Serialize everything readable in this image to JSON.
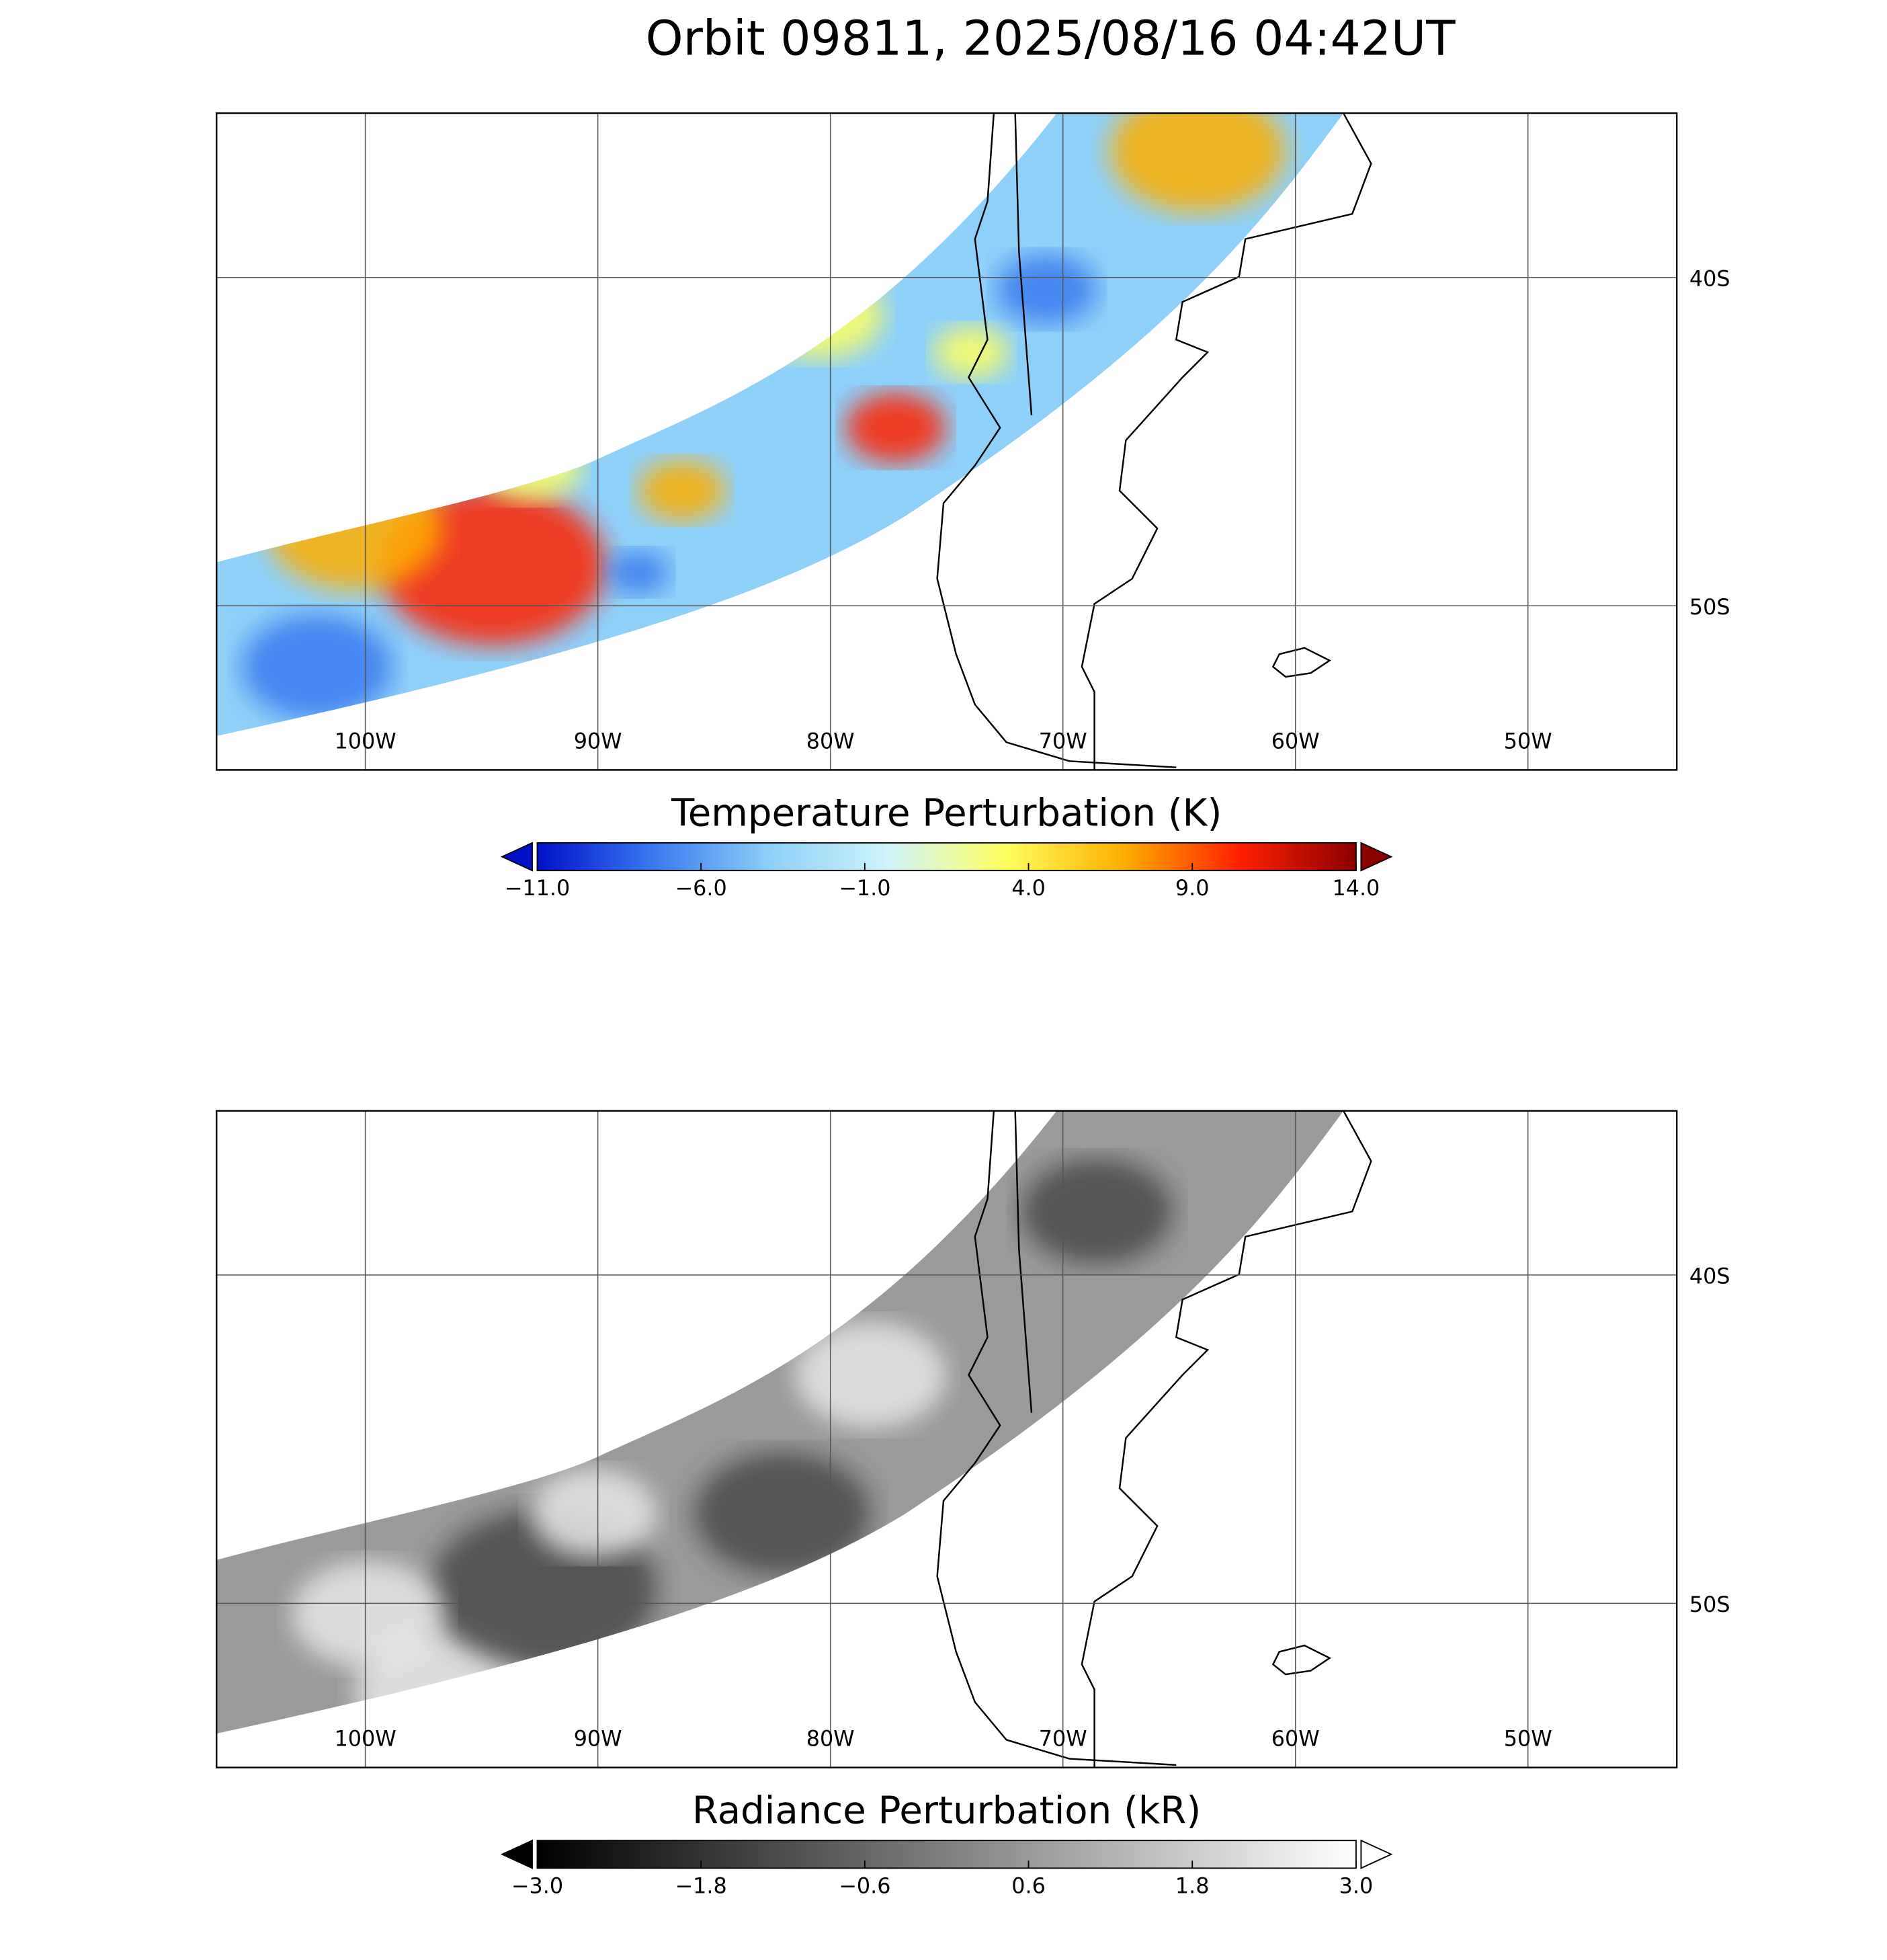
{
  "title": "Orbit 09811, 2025/08/16 04:42UT",
  "panels": [
    {
      "xlim": [
        -106.4,
        -43.6
      ],
      "ylim": [
        -55,
        -35
      ],
      "xticks": [
        {
          "value": -100,
          "label": "100W"
        },
        {
          "value": -90,
          "label": "90W"
        },
        {
          "value": -80,
          "label": "80W"
        },
        {
          "value": -70,
          "label": "70W"
        },
        {
          "value": -60,
          "label": "60W"
        },
        {
          "value": -50,
          "label": "50W"
        }
      ],
      "yticks": [
        {
          "value": -40,
          "label": "40S"
        },
        {
          "value": -50,
          "label": "50S"
        }
      ],
      "colorbar": {
        "label": "Temperature Perturbation (K)",
        "lim": [
          -11,
          14
        ],
        "ticks": [
          {
            "value": -11,
            "label": "−11.0"
          },
          {
            "value": -6,
            "label": "−6.0"
          },
          {
            "value": -1,
            "label": "−1.0"
          },
          {
            "value": 4,
            "label": "4.0"
          },
          {
            "value": 9,
            "label": "9.0"
          },
          {
            "value": 14,
            "label": "14.0"
          }
        ],
        "colors": [
          "#0010c8",
          "#3a7af0",
          "#8fd0f8",
          "#cef4fc",
          "#ffff60",
          "#ffb000",
          "#ff2000",
          "#8c0000"
        ]
      }
    },
    {
      "xlim": [
        -106.4,
        -43.6
      ],
      "ylim": [
        -55,
        -35
      ],
      "xticks": [
        {
          "value": -100,
          "label": "100W"
        },
        {
          "value": -90,
          "label": "90W"
        },
        {
          "value": -80,
          "label": "80W"
        },
        {
          "value": -70,
          "label": "70W"
        },
        {
          "value": -60,
          "label": "60W"
        },
        {
          "value": -50,
          "label": "50W"
        }
      ],
      "yticks": [
        {
          "value": -40,
          "label": "40S"
        },
        {
          "value": -50,
          "label": "50S"
        }
      ],
      "colorbar": {
        "label": "Radiance Perturbation (kR)",
        "lim": [
          -3,
          3
        ],
        "ticks": [
          {
            "value": -3,
            "label": "−3.0"
          },
          {
            "value": -1.8,
            "label": "−1.8"
          },
          {
            "value": -0.6,
            "label": "−0.6"
          },
          {
            "value": 0.6,
            "label": "0.6"
          },
          {
            "value": 1.8,
            "label": "1.8"
          },
          {
            "value": 3,
            "label": "3.0"
          }
        ],
        "colors": [
          "#000000",
          "#ffffff"
        ]
      }
    }
  ]
}
